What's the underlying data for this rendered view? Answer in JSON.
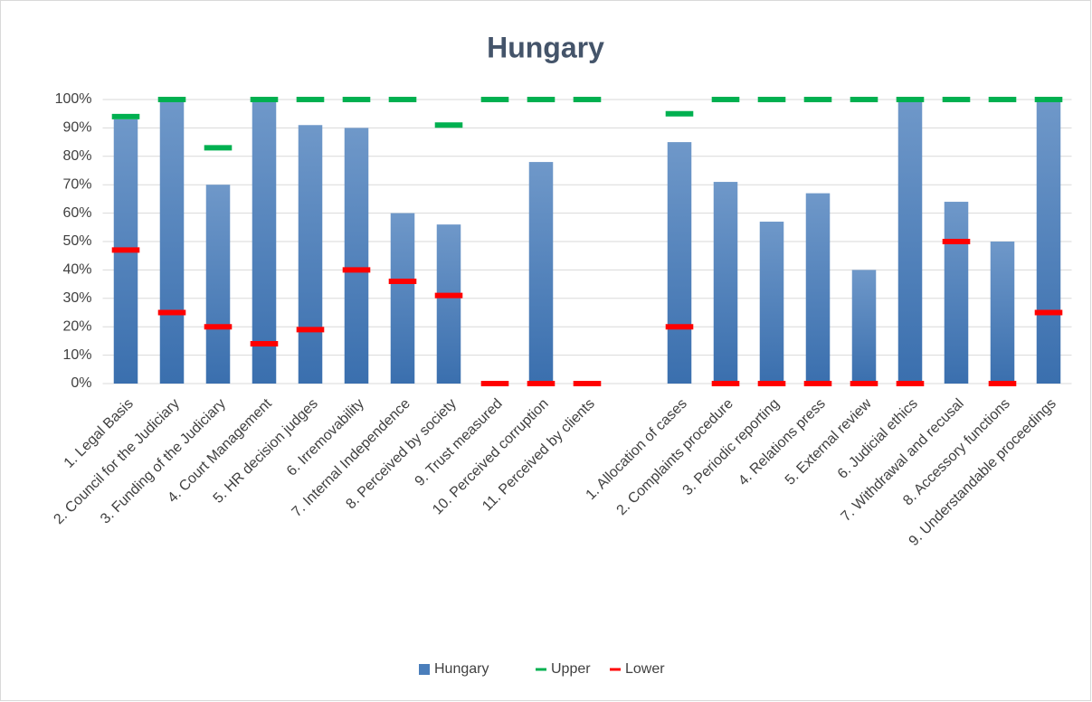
{
  "chart_data": {
    "type": "bar",
    "title": "Hungary",
    "categories": [
      "1. Legal Basis",
      "2. Council for the Judiciary",
      "3. Funding of the Judiciary",
      "4. Court Management",
      "5. HR decision judges",
      "6. Irremovability",
      "7. Internal Independence",
      "8. Perceived by society",
      "9. Trust measured",
      "10. Perceived corruption",
      "11. Perceived by clients",
      null,
      "1. Allocation of cases",
      "2. Complaints procedure",
      "3. Periodic reporting",
      "4. Relations press",
      "5. External review",
      "6. Judicial ethics",
      "7. Withdrawal and recusal",
      "8. Accessory functions",
      "9. Understandable proceedings"
    ],
    "series": [
      {
        "name": "Hungary",
        "color": "#4a7ebb",
        "marker": "bar",
        "values": [
          93,
          100,
          70,
          100,
          91,
          90,
          60,
          56,
          0,
          78,
          0,
          null,
          85,
          71,
          57,
          67,
          40,
          100,
          64,
          50,
          100
        ]
      },
      {
        "name": "Upper",
        "color": "#00b050",
        "marker": "dash",
        "values": [
          94,
          100,
          83,
          100,
          100,
          100,
          100,
          91,
          100,
          100,
          100,
          null,
          95,
          100,
          100,
          100,
          100,
          100,
          100,
          100,
          100
        ]
      },
      {
        "name": "Lower",
        "color": "#ff0000",
        "marker": "dash",
        "values": [
          47,
          25,
          20,
          14,
          19,
          40,
          36,
          31,
          0,
          0,
          0,
          null,
          20,
          0,
          0,
          0,
          0,
          0,
          50,
          0,
          25
        ]
      }
    ],
    "ylim": [
      0,
      100
    ],
    "yticks": [
      {
        "value": 0,
        "label": "0%"
      },
      {
        "value": 10,
        "label": "10%"
      },
      {
        "value": 20,
        "label": "20%"
      },
      {
        "value": 30,
        "label": "30%"
      },
      {
        "value": 40,
        "label": "40%"
      },
      {
        "value": 50,
        "label": "50%"
      },
      {
        "value": 60,
        "label": "60%"
      },
      {
        "value": 70,
        "label": "70%"
      },
      {
        "value": 80,
        "label": "80%"
      },
      {
        "value": 90,
        "label": "90%"
      },
      {
        "value": 100,
        "label": "100%"
      }
    ],
    "grid": true,
    "legend": "bottom"
  }
}
